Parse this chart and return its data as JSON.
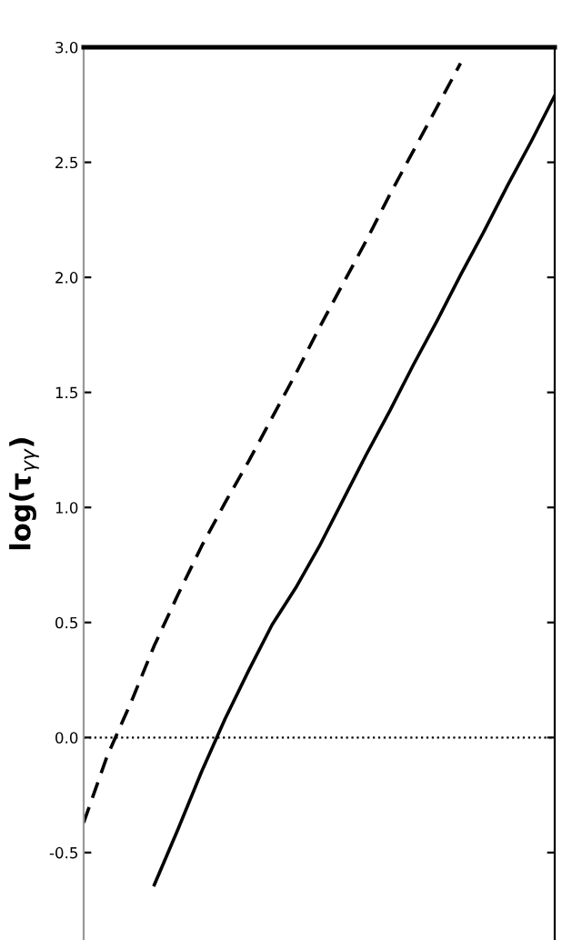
{
  "chart_data": {
    "type": "line",
    "ylabel": "log(τ$_{γγ}$)",
    "categories": [
      null,
      null,
      null,
      null,
      null,
      null,
      null,
      null,
      null,
      null,
      null,
      null,
      null,
      null,
      null,
      null,
      null,
      null,
      null,
      null,
      null
    ],
    "series": [
      {
        "color": "#000000",
        "line_style": "dashed",
        "values": [
          -0.37,
          -0.08,
          0.15,
          0.4,
          0.62,
          0.83,
          1.02,
          1.2,
          1.39,
          1.58,
          1.78,
          1.97,
          2.16,
          2.36,
          2.55,
          2.74,
          2.93,
          null,
          null,
          null,
          null
        ]
      },
      {
        "color": "#000000",
        "line_style": "solid",
        "values": [
          null,
          null,
          null,
          -0.64,
          -0.4,
          -0.15,
          0.08,
          0.29,
          0.49,
          0.65,
          0.83,
          1.03,
          1.23,
          1.42,
          1.62,
          1.81,
          2.01,
          2.2,
          2.4,
          2.59,
          2.79
        ]
      }
    ],
    "ylim": [
      -0.88,
      3.0
    ],
    "yticks": [
      -0.5,
      {
        "value": 0,
        "label": "0.0"
      },
      0.5,
      {
        "value": 1,
        "label": "1.0"
      },
      1.5,
      {
        "value": 2,
        "label": "2.0"
      },
      2.5,
      {
        "value": 3,
        "label": "3.0"
      }
    ],
    "tick_labels": "y",
    "grid": false,
    "legend": false,
    "marker": "none",
    "ref_lines": [
      {
        "axis": "y",
        "value": 0,
        "color": "#000000",
        "line_style": "dotted"
      }
    ]
  }
}
